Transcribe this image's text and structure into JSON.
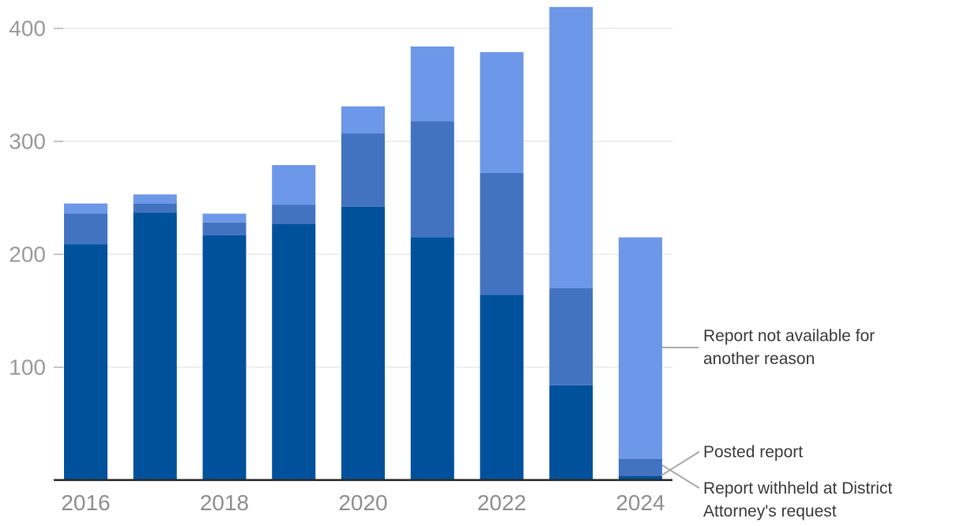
{
  "colors": {
    "posted": "#00519c",
    "withheld": "#4273c1",
    "not_available": "#6d97e8",
    "gridline": "#e8e8e8",
    "tick": "#c6c6c6",
    "axis_line": "#2b2b2b",
    "y_label": "#9a9a9a",
    "x_label": "#8f8f8f",
    "annotation_text": "#3d3d3d",
    "callout_line": "#ababab",
    "background": "#ffffff"
  },
  "chart_data": {
    "type": "bar",
    "stacked": true,
    "title": "",
    "xlabel": "",
    "ylabel": "",
    "categories": [
      "2016",
      "2017",
      "2018",
      "2019",
      "2020",
      "2021",
      "2022",
      "2023",
      "2024"
    ],
    "series": [
      {
        "name": "Posted report",
        "color_key": "posted",
        "values": [
          209,
          237,
          217,
          227,
          242,
          215,
          164,
          84,
          4
        ]
      },
      {
        "name": "Report withheld at District Attorney's request",
        "color_key": "withheld",
        "values": [
          27,
          8,
          11,
          17,
          65,
          103,
          108,
          86,
          15
        ]
      },
      {
        "name": "Report not available for another reason",
        "color_key": "not_available",
        "values": [
          9,
          8,
          8,
          35,
          24,
          66,
          107,
          249,
          196
        ]
      }
    ],
    "totals": [
      245,
      253,
      236,
      279,
      331,
      384,
      379,
      419,
      215
    ],
    "ylim": [
      0,
      430
    ],
    "yticks": [
      100,
      200,
      300,
      400
    ],
    "xtick_labels": [
      "2016",
      "2018",
      "2020",
      "2022",
      "2024"
    ],
    "xtick_every": 2,
    "grid": "horizontal",
    "legend_position": "right-annotations"
  },
  "annotations": {
    "not_available": {
      "text": "Report not available for\nanother reason"
    },
    "posted": {
      "text": "Posted report"
    },
    "withheld": {
      "text": "Report withheld at District\nAttorney's request"
    }
  }
}
